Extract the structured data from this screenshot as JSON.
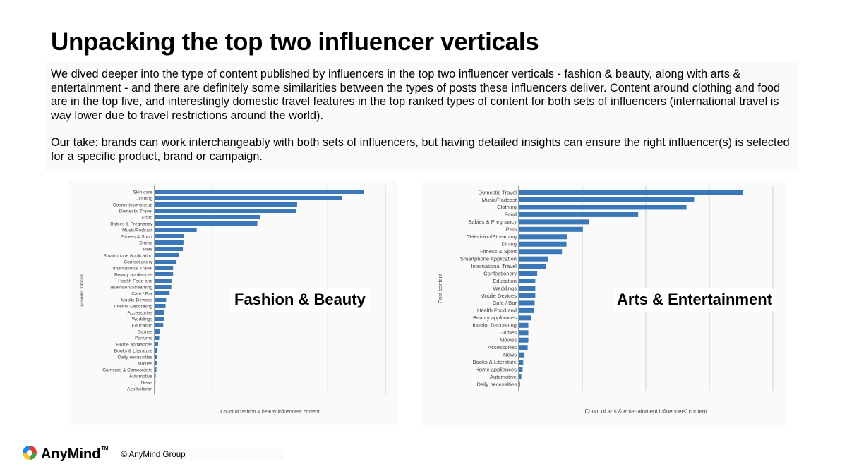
{
  "slide": {
    "title": "Unpacking the top two influencer verticals",
    "paragraph1": "We dived deeper into the type of content published by influencers in the top two influencer verticals - fashion & beauty, along with arts & entertainment - and there are definitely some similarities between the types of posts these influencers deliver. Content around clothing and food are in the top five, and interestingly domestic travel features in the top ranked types of content for both sets of influencers (international travel is way lower due to travel restrictions around the world).",
    "paragraph2": "Our take: brands can work interchangeably with both sets of influencers, but having detailed insights can ensure the right influencer(s) is selected for a specific product, brand or campaign.",
    "left_overlay": "Fashion & Beauty",
    "right_overlay": "Arts & Entertainment"
  },
  "footer": {
    "logo": "AnyMind",
    "logo_mark": "TM",
    "copyright": "© AnyMind Group"
  },
  "colors": {
    "bar": "#3a78b8",
    "grid": "#d0d0d0",
    "axis": "#444444"
  },
  "chart_data": [
    {
      "type": "bar",
      "orientation": "horizontal",
      "title": "",
      "xlabel": "Count of fashion & beauty influencers' content",
      "ylabel": "Account interest",
      "categories": [
        "Skin care",
        "Clothing",
        "Cosmetics/makeup",
        "Domestic Travel",
        "Food",
        "Babies & Pregnancy",
        "Music/Podcast",
        "Fitness & Sport",
        "Dining",
        "Pets",
        "Smartphone Application",
        "Confectionery",
        "International Travel",
        "Beauty appliances",
        "Health Food and",
        "Television/Streaming",
        "Cafe / Bar",
        "Mobile Devices",
        "Interior Decorating",
        "Accessories",
        "Weddings",
        "Education",
        "Games",
        "Perfume",
        "Home appliances",
        "Books & Literature",
        "Daily necessities",
        "Movies",
        "Cameras & Camcorders",
        "Automotive",
        "News",
        "Aesthetician"
      ],
      "values": [
        36.3,
        32.5,
        24.7,
        24.5,
        18.3,
        17.8,
        7.3,
        5.1,
        5.0,
        4.9,
        4.2,
        3.8,
        3.2,
        3.2,
        3.0,
        2.9,
        2.6,
        2.0,
        1.9,
        1.6,
        1.6,
        1.5,
        0.9,
        0.8,
        0.6,
        0.5,
        0.45,
        0.4,
        0.3,
        0.2,
        0.15,
        0.1
      ],
      "xlim": [
        0,
        40
      ],
      "gridlines": [
        0,
        10,
        20,
        30,
        40
      ],
      "grid": true
    },
    {
      "type": "bar",
      "orientation": "horizontal",
      "title": "",
      "xlabel": "Count of arts & entertainment influencers' content",
      "ylabel": "Post content",
      "categories": [
        "Domestic Travel",
        "Music/Podcast",
        "Clothing",
        "Food",
        "Babies & Pregnancy",
        "Pets",
        "Television/Streaming",
        "Dining",
        "Fitness & Sport",
        "Smartphone Application",
        "International Travel",
        "Confectionery",
        "Education",
        "Weddings",
        "Mobile Devices",
        "Cafe / Bar",
        "Health Food and",
        "Beauty appliances",
        "Interior Decorating",
        "Games",
        "Movies",
        "Accessories",
        "News",
        "Books & Literature",
        "Home appliances",
        "Automotive",
        "Daily necessities"
      ],
      "values": [
        35.3,
        27.6,
        26.4,
        18.8,
        11.0,
        10.1,
        7.6,
        7.5,
        6.8,
        4.6,
        4.3,
        2.9,
        2.6,
        2.6,
        2.6,
        2.5,
        2.4,
        2.0,
        1.5,
        1.5,
        1.5,
        1.4,
        0.9,
        0.7,
        0.6,
        0.4,
        0.2
      ],
      "xlim": [
        0,
        40
      ],
      "gridlines": [
        0,
        10,
        20,
        30,
        40
      ],
      "grid": true
    }
  ]
}
